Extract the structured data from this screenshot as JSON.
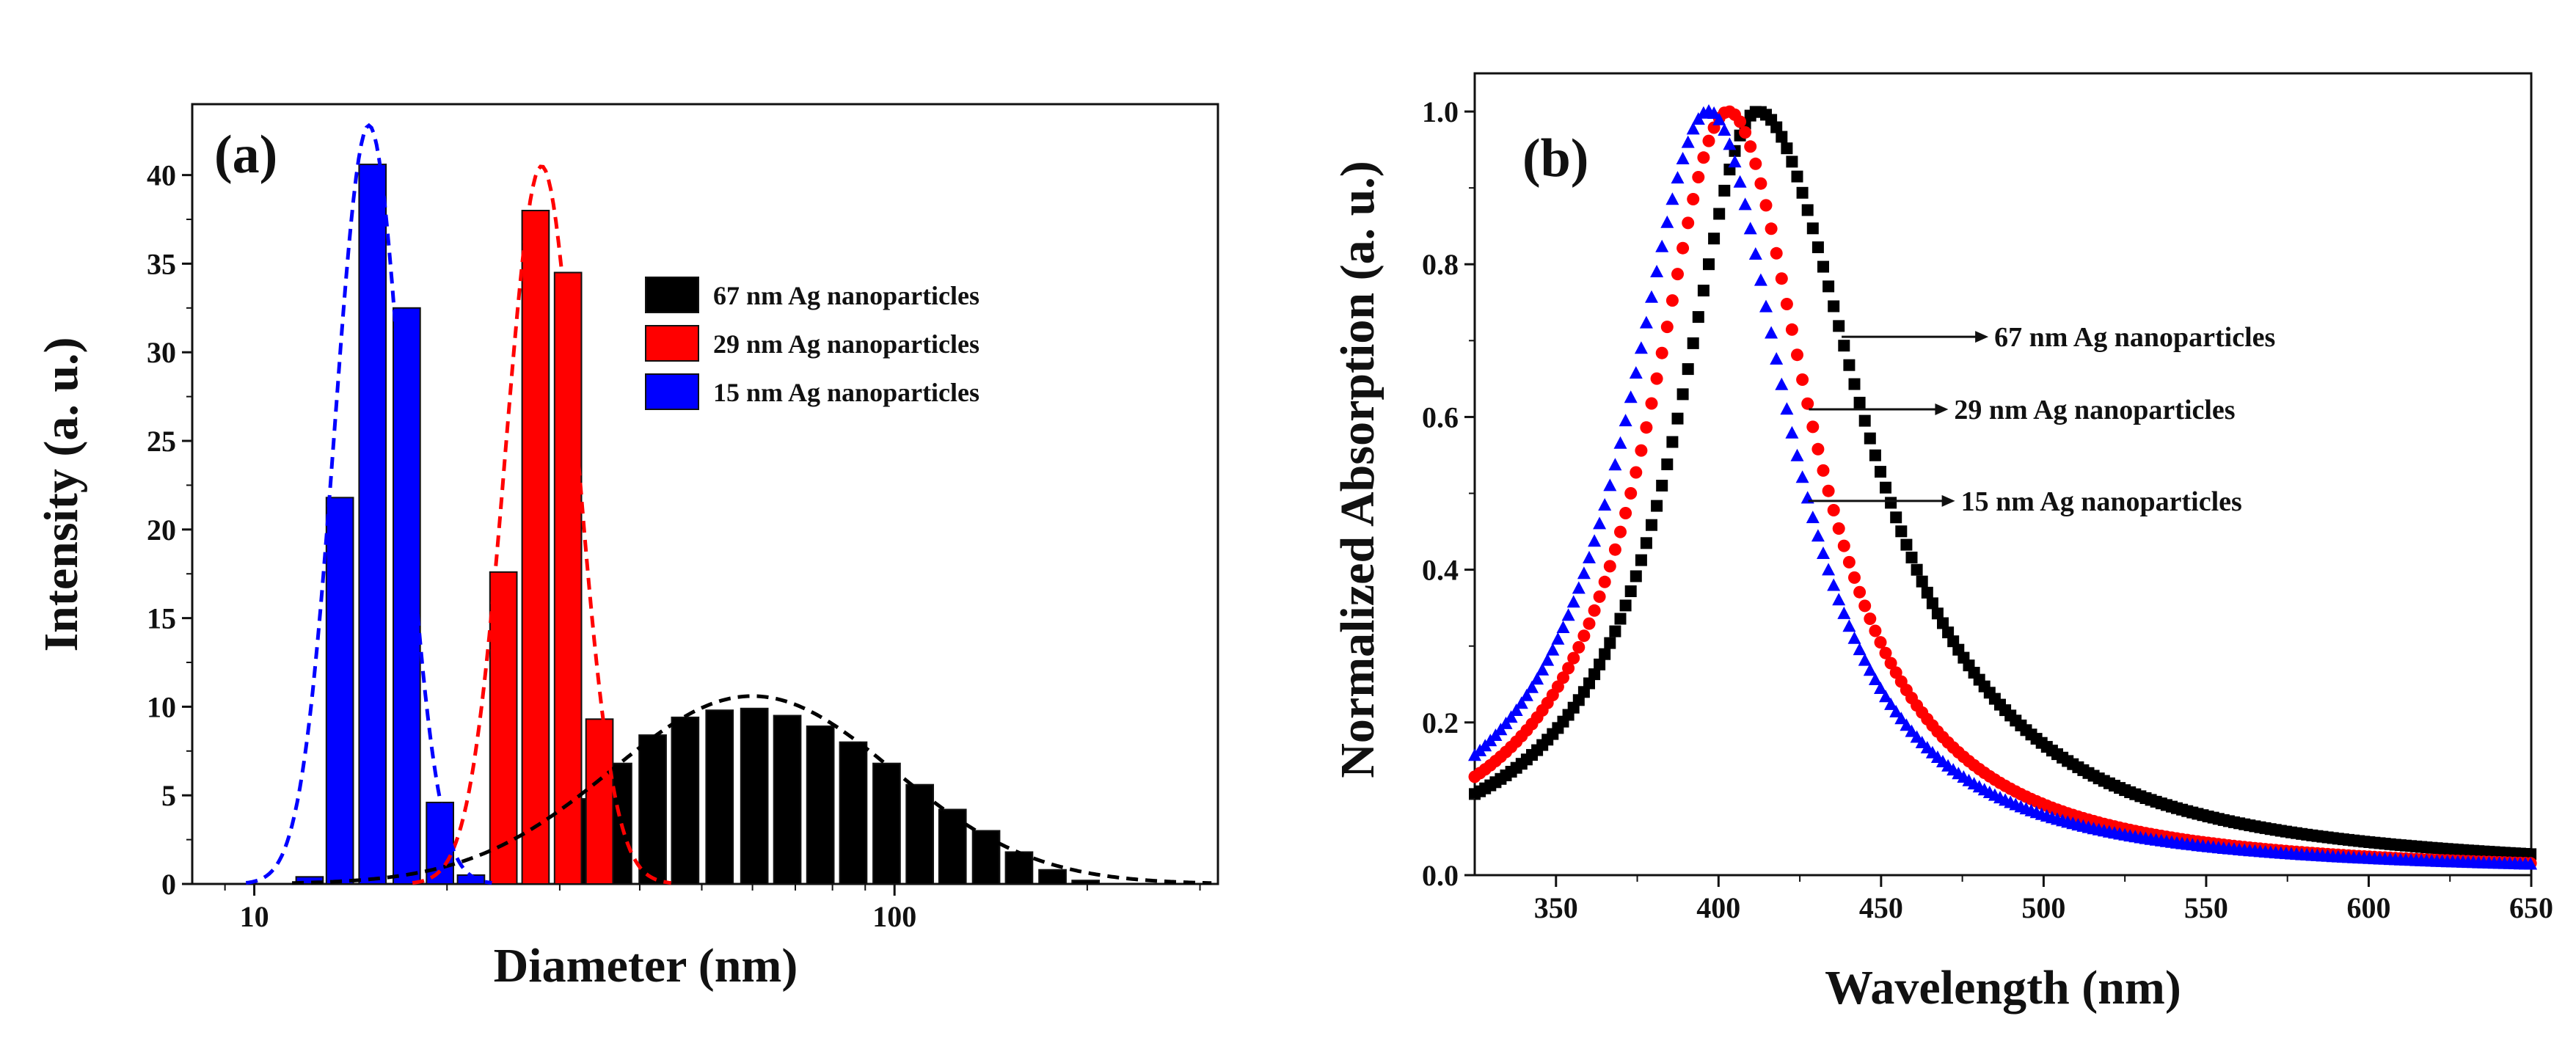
{
  "colors": {
    "black": "#000000",
    "red": "#ff0000",
    "blue": "#0000ff",
    "axis": "#111111"
  },
  "chart_data": [
    {
      "panel_label": "(a)",
      "type": "bar",
      "xscale": "log",
      "xlabel": "Diameter (nm)",
      "ylabel": "Intensity (a. u.)",
      "xlim": [
        8,
        320
      ],
      "ylim": [
        0,
        44
      ],
      "xticks": [
        10,
        100
      ],
      "xticklabels": [
        "10",
        "100"
      ],
      "yticks": [
        0,
        5,
        10,
        15,
        20,
        25,
        30,
        35,
        40
      ],
      "yticklabels": [
        "0",
        "5",
        "10",
        "15",
        "20",
        "25",
        "30",
        "35",
        "40"
      ],
      "legend": [
        "67 nm Ag nanoparticles",
        "29 nm Ag nanoparticles",
        "15 nm Ag nanoparticles"
      ],
      "legend_position": "right",
      "series": [
        {
          "name": "67 nm Ag nanoparticles",
          "color": "#000000",
          "bins": [
            33,
            37,
            41.9,
            47.1,
            53.3,
            60.4,
            68,
            76.6,
            86.2,
            97.2,
            109.5,
            123.2,
            139,
            156.5,
            176.5,
            198.8
          ],
          "values": [
            4.8,
            6.8,
            8.4,
            9.4,
            9.8,
            9.9,
            9.5,
            8.9,
            8.0,
            6.8,
            5.6,
            4.2,
            3.0,
            1.8,
            0.8,
            0.2
          ],
          "fit_peak": 60.0,
          "fit_amp": 10.6,
          "fit_sigma_log10": 0.22
        },
        {
          "name": "29 nm Ag nanoparticles",
          "color": "#ff0000",
          "bins": [
            24.5,
            27.5,
            30.9,
            34.6
          ],
          "values": [
            17.6,
            38.0,
            34.5,
            9.3
          ],
          "fit_peak": 28.1,
          "fit_amp": 40.5,
          "fit_sigma_log10": 0.056
        },
        {
          "name": "15 nm Ag nanoparticles",
          "color": "#0000ff",
          "bins": [
            12.2,
            13.6,
            15.3,
            17.3,
            19.5,
            21.8
          ],
          "values": [
            0.4,
            21.8,
            40.6,
            32.5,
            4.6,
            0.5
          ],
          "fit_peak": 15.1,
          "fit_amp": 42.8,
          "fit_sigma_log10": 0.053
        }
      ]
    },
    {
      "panel_label": "(b)",
      "type": "scatter",
      "xlabel": "Wavelength (nm)",
      "ylabel": "Normalized Absorption (a. u.)",
      "xlim": [
        325,
        650
      ],
      "ylim": [
        0,
        1.05
      ],
      "xticks": [
        350,
        400,
        450,
        500,
        550,
        600,
        650
      ],
      "xticklabels": [
        "350",
        "400",
        "450",
        "500",
        "550",
        "600",
        "650"
      ],
      "yticks": [
        0,
        0.2,
        0.4,
        0.6,
        0.8,
        1.0
      ],
      "yticklabels": [
        "0.0",
        "0.2",
        "0.4",
        "0.6",
        "0.8",
        "1.0"
      ],
      "series": [
        {
          "name": "67 nm Ag nanoparticles",
          "color": "#000000",
          "marker": "square",
          "peak": 412,
          "width_left": 30,
          "width_right": 40,
          "annotation_y": 0.705
        },
        {
          "name": "29 nm Ag nanoparticles",
          "color": "#ff0000",
          "marker": "circle",
          "peak": 403,
          "width_left": 30,
          "width_right": 31,
          "annotation_y": 0.61
        },
        {
          "name": "15 nm Ag nanoparticles",
          "color": "#0000ff",
          "marker": "triangle",
          "peak": 397,
          "width_left": 31,
          "width_right": 30,
          "annotation_y": 0.49
        }
      ]
    }
  ]
}
